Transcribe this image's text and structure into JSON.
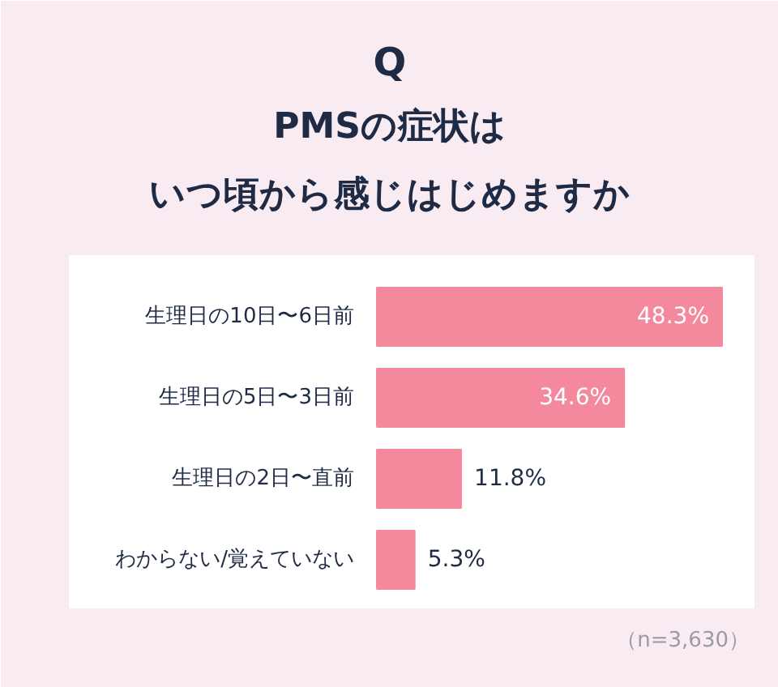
{
  "chart_data": {
    "type": "bar",
    "orientation": "horizontal",
    "title": "PMSの症状は",
    "subtitle": "いつ頃から感じはじめますか",
    "categories": [
      "生理日の10日〜6日前",
      "生理日の5日〜3日前",
      "生理日の2日〜直前",
      "わからない/覚えていない"
    ],
    "values": [
      48.3,
      34.6,
      11.8,
      5.3
    ],
    "value_labels": [
      "48.3%",
      "34.6%",
      "11.8%",
      "5.3%"
    ],
    "color": "#f4899e",
    "annotations": [
      "Q",
      "（n=3,630）"
    ]
  }
}
